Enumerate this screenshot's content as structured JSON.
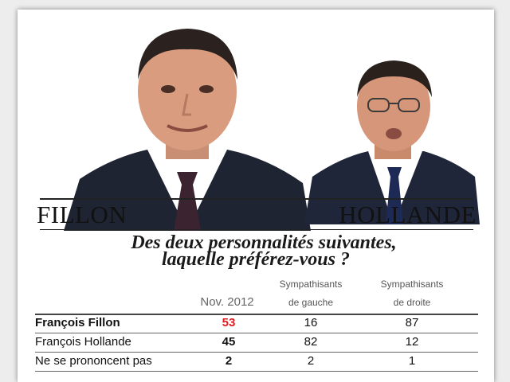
{
  "header": {
    "left_name": "FILLON",
    "right_name": "HOLLANDE"
  },
  "question": {
    "line1": "Des deux personnalités suivantes,",
    "line2": "laquelle préférez-vous ?"
  },
  "columns": {
    "nov": "Nov. 2012",
    "gauche_line1": "Sympathisants",
    "gauche_line2": "de gauche",
    "droite_line1": "Sympathisants",
    "droite_line2": "de droite"
  },
  "rows": [
    {
      "label": "François Fillon",
      "nov": "53",
      "gauche": "16",
      "droite": "87"
    },
    {
      "label": "François Hollande",
      "nov": "45",
      "gauche": "82",
      "droite": "12"
    },
    {
      "label": "Ne se prononcent pas",
      "nov": "2",
      "gauche": "2",
      "droite": "1"
    }
  ],
  "colors": {
    "highlight": "#e11b22",
    "suit": "#1f2433"
  }
}
